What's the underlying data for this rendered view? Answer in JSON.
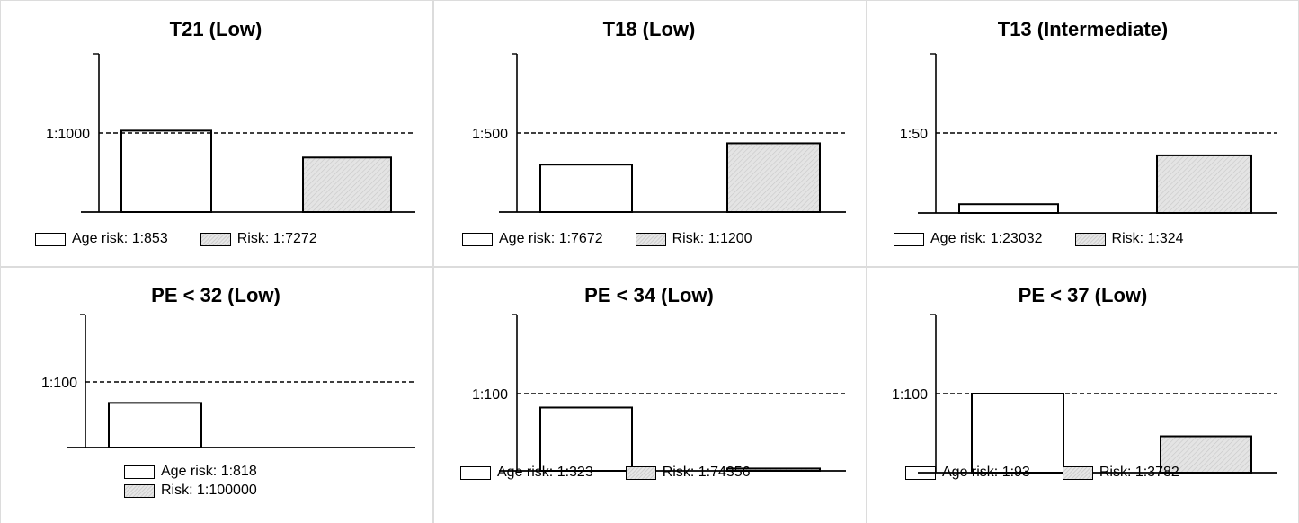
{
  "colors": {
    "frame": "#dcdcdc",
    "hatch_fill": "#dcdcdc",
    "bar_border": "#000000"
  },
  "chart_data": [
    {
      "type": "bar",
      "title": "T21 (Low)",
      "threshold_label": "1:1000",
      "threshold": 1000,
      "series": [
        {
          "name": "Age risk",
          "value_label": "1:853",
          "level": 1.03,
          "style": "open"
        },
        {
          "name": "Risk",
          "value_label": "1:7272",
          "level": 0.69,
          "style": "hatched"
        }
      ],
      "legend": "bottom",
      "legend_items": [
        "Age risk: 1:853",
        "Risk: 1:7272"
      ]
    },
    {
      "type": "bar",
      "title": "T18 (Low)",
      "threshold_label": "1:500",
      "threshold": 500,
      "series": [
        {
          "name": "Age risk",
          "value_label": "1:7672",
          "level": 0.6,
          "style": "open"
        },
        {
          "name": "Risk",
          "value_label": "1:1200",
          "level": 0.87,
          "style": "hatched"
        }
      ],
      "legend": "bottom",
      "legend_items": [
        "Age risk: 1:7672",
        "Risk: 1:1200"
      ]
    },
    {
      "type": "bar",
      "title": "T13 (Intermediate)",
      "threshold_label": "1:50",
      "threshold": 50,
      "series": [
        {
          "name": "Age risk",
          "value_label": "1:23032",
          "level": 0.11,
          "style": "open"
        },
        {
          "name": "Risk",
          "value_label": "1:324",
          "level": 0.72,
          "style": "hatched"
        }
      ],
      "legend": "bottom",
      "legend_items": [
        "Age risk: 1:23032",
        "Risk: 1:324"
      ]
    },
    {
      "type": "bar",
      "title": "PE < 32 (Low)",
      "threshold_label": "1:100",
      "threshold": 100,
      "series": [
        {
          "name": "Age risk",
          "value_label": "1:818",
          "level": 0.68,
          "style": "open"
        },
        {
          "name": "Risk",
          "value_label": "1:100000",
          "level": 0.0,
          "style": "hatched"
        }
      ],
      "legend": "bottom-stacked",
      "legend_items": [
        "Age risk: 1:818",
        "Risk: 1:100000"
      ]
    },
    {
      "type": "bar",
      "title": "PE < 34 (Low)",
      "threshold_label": "1:100",
      "threshold": 100,
      "series": [
        {
          "name": "Age risk",
          "value_label": "1:323",
          "level": 0.82,
          "style": "open"
        },
        {
          "name": "Risk",
          "value_label": "1:74356",
          "level": 0.03,
          "style": "hatched"
        }
      ],
      "legend": "bottom",
      "legend_items": [
        "Age risk: 1:323",
        "Risk: 1:74356"
      ]
    },
    {
      "type": "bar",
      "title": "PE < 37 (Low)",
      "threshold_label": "1:100",
      "threshold": 100,
      "series": [
        {
          "name": "Age risk",
          "value_label": "1:93",
          "level": 1.0,
          "style": "open"
        },
        {
          "name": "Risk",
          "value_label": "1:3782",
          "level": 0.46,
          "style": "hatched"
        }
      ],
      "legend": "bottom",
      "legend_items": [
        "Age risk: 1:93",
        "Risk: 1:3782"
      ]
    }
  ]
}
